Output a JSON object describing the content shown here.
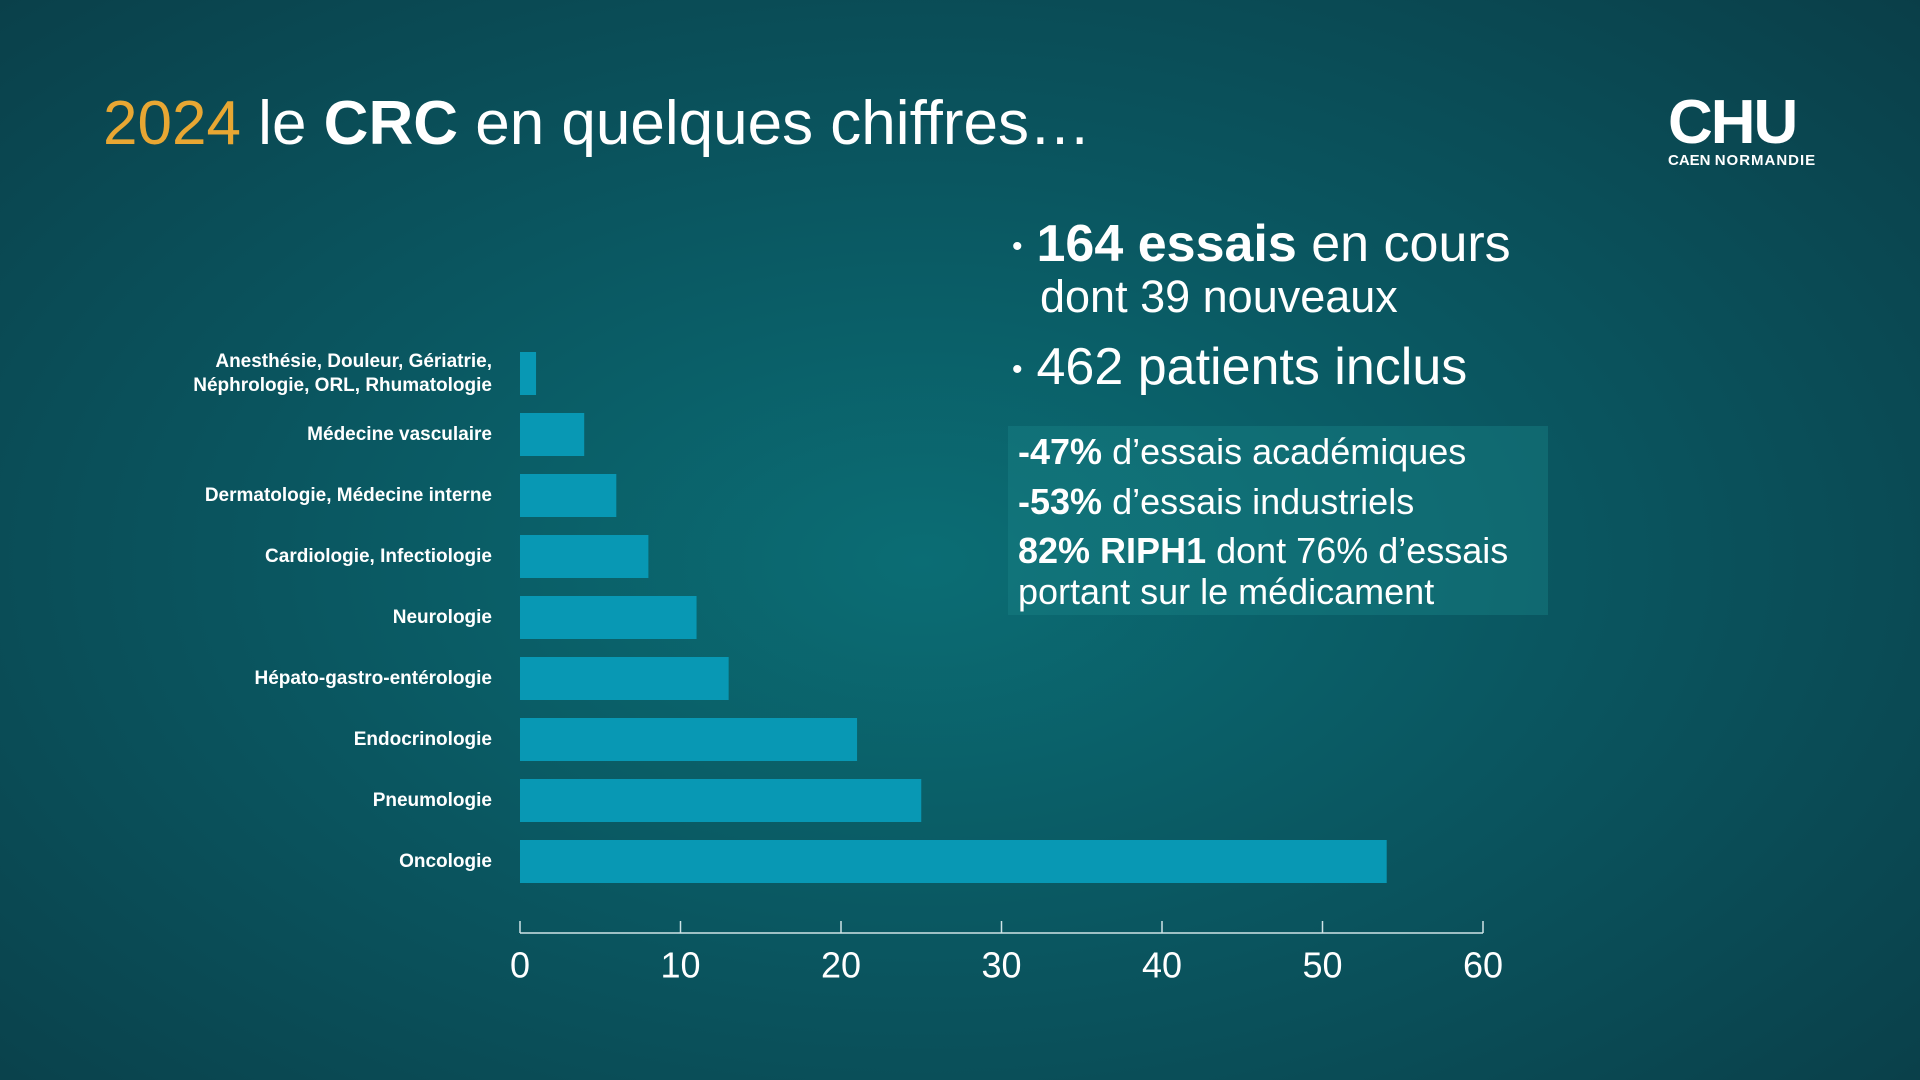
{
  "header": {
    "year": "2024",
    "title_pre": "le",
    "title_bold": "CRC",
    "title_post": "en quelques chiffres…"
  },
  "logo": {
    "mark": "CHU",
    "city": "CAEN",
    "region": "NORMANDIE"
  },
  "stats": [
    {
      "bold": "164 essais",
      "text": "en cours",
      "sub": "dont 39 nouveaux"
    },
    {
      "text": "462 patients inclus"
    }
  ],
  "highlights": [
    {
      "bold": "-47%",
      "text": "d’essais académiques"
    },
    {
      "bold": "-53%",
      "text": "d’essais industriels"
    },
    {
      "bold": "82% RIPH1",
      "text": "dont 76% d’essais",
      "sub": "portant sur le médicament"
    }
  ],
  "chart_data": {
    "type": "bar",
    "orientation": "horizontal",
    "categories": [
      "Anesthésie, Douleur, Gériatrie, Néphrologie, ORL, Rhumatologie",
      "Médecine vasculaire",
      "Dermatologie, Médecine interne",
      "Cardiologie, Infectiologie",
      "Neurologie",
      "Hépato-gastro-entérologie",
      "Endocrinologie",
      "Pneumologie",
      "Oncologie"
    ],
    "values": [
      1,
      4,
      6,
      8,
      11,
      13,
      21,
      25,
      54
    ],
    "color": "#0898b4",
    "xlim": [
      0,
      60
    ],
    "xticks": [
      0,
      10,
      20,
      30,
      40,
      50,
      60
    ],
    "grid": false
  }
}
